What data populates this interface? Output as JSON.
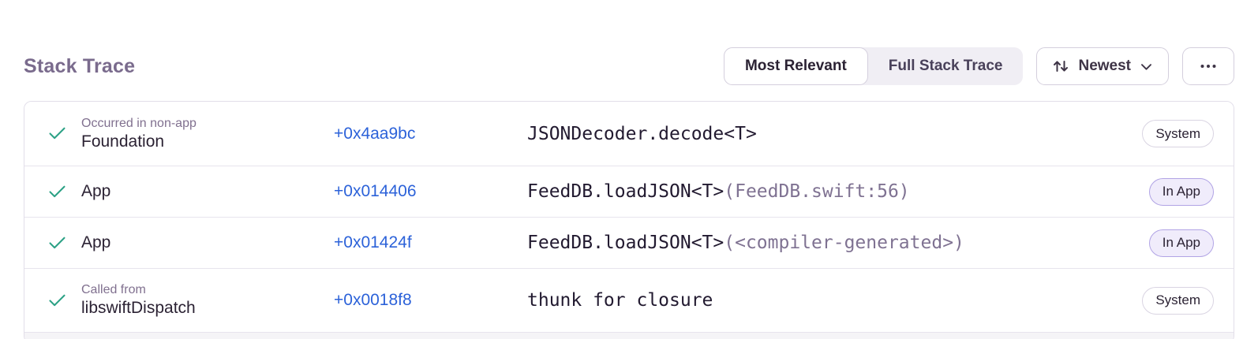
{
  "page": {
    "title": "Stack Trace"
  },
  "toolbar": {
    "view_toggle": [
      {
        "label": "Most Relevant",
        "active": true
      },
      {
        "label": "Full Stack Trace",
        "active": false
      }
    ],
    "sort": {
      "label": "Newest",
      "icon": "sort-arrows-icon",
      "chevron": "chevron-down-icon"
    },
    "more": {
      "icon": "ellipsis-icon"
    }
  },
  "colors": {
    "heading": "#7a6b8d",
    "text": "#2b2233",
    "note_gray": "#80708f",
    "link_blue": "#2c62d9",
    "check_green": "#2ba185",
    "divider": "#e7e4ed",
    "in_app_badge_bg": "#f0ecfb",
    "in_app_badge_border": "#b1a4e5",
    "system_badge_border": "#d9d4e2"
  },
  "stack_trace": {
    "frames": [
      {
        "note": "Occurred in non-app",
        "module": "Foundation",
        "address": "+0x4aa9bc",
        "function": "JSONDecoder.decode<T>",
        "location": "",
        "badge": "System",
        "badge_type": "system"
      },
      {
        "note": "",
        "module": "App",
        "address": "+0x014406",
        "function": "FeedDB.loadJSON<T>",
        "location": "(FeedDB.swift:56)",
        "badge": "In App",
        "badge_type": "inapp"
      },
      {
        "note": "",
        "module": "App",
        "address": "+0x01424f",
        "function": "FeedDB.loadJSON<T>",
        "location": "(<compiler-generated>)",
        "badge": "In App",
        "badge_type": "inapp"
      },
      {
        "note": "Called from",
        "module": "libswiftDispatch",
        "address": "+0x0018f8",
        "function": "thunk for closure",
        "location": "",
        "badge": "System",
        "badge_type": "system"
      }
    ]
  }
}
